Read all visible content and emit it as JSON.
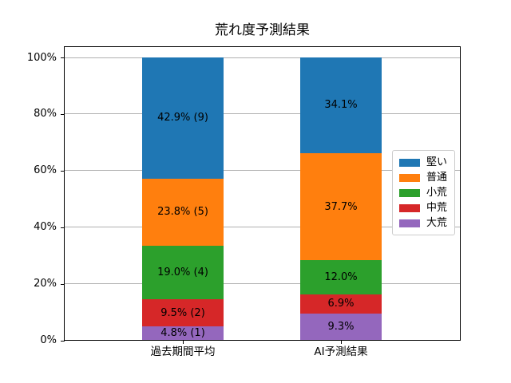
{
  "title": "荒れ度予測結果",
  "chart_data": {
    "type": "bar",
    "stacked": true,
    "percent_stacked": true,
    "title": "荒れ度予測結果",
    "xlabel": "",
    "ylabel": "",
    "ylim": [
      0,
      100
    ],
    "ytick_values": [
      0,
      20,
      40,
      60,
      80,
      100
    ],
    "ytick_labels": [
      "0%",
      "20%",
      "40%",
      "60%",
      "80%",
      "100%"
    ],
    "grid": true,
    "grid_color": "#b0b0b0",
    "legend_position": "right-inside",
    "categories": [
      "過去期間平均",
      "AI予測結果"
    ],
    "series": [
      {
        "name": "堅い",
        "color": "#1f77b4",
        "values": [
          42.9,
          34.1
        ],
        "labels": [
          "42.9% (9)",
          "34.1%"
        ]
      },
      {
        "name": "普通",
        "color": "#ff7f0e",
        "values": [
          23.8,
          37.7
        ],
        "labels": [
          "23.8% (5)",
          "37.7%"
        ]
      },
      {
        "name": "小荒",
        "color": "#2ca02c",
        "values": [
          19.0,
          12.0
        ],
        "labels": [
          "19.0% (4)",
          "12.0%"
        ]
      },
      {
        "name": "中荒",
        "color": "#d62728",
        "values": [
          9.5,
          6.9
        ],
        "labels": [
          "9.5% (2)",
          "6.9%"
        ]
      },
      {
        "name": "大荒",
        "color": "#9467bd",
        "values": [
          4.8,
          9.3
        ],
        "labels": [
          "4.8% (1)",
          "9.3%"
        ]
      }
    ]
  }
}
